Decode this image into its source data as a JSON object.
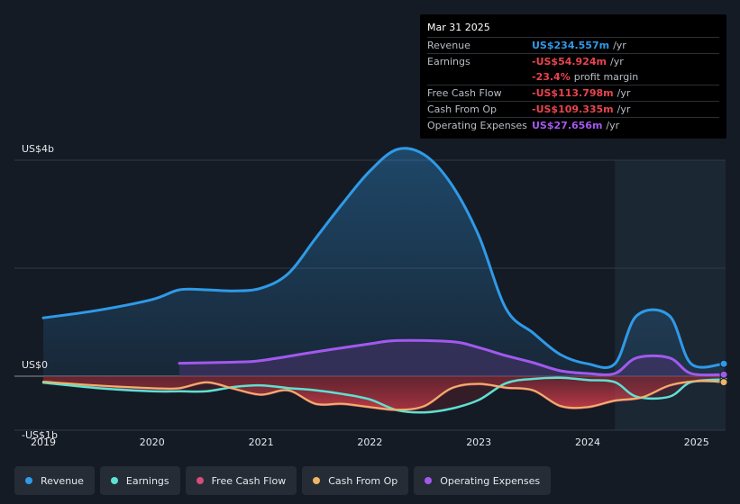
{
  "tooltip": {
    "date": "Mar 31 2025",
    "rows": [
      {
        "label": "Revenue",
        "value": "US$234.557m",
        "unit": "/yr",
        "color": "#2f9ae8"
      },
      {
        "label": "Earnings",
        "value": "-US$54.924m",
        "unit": "/yr",
        "color": "#e8444f"
      },
      {
        "label": "",
        "value": "-23.4%",
        "unit": "profit margin",
        "color": "#e8444f"
      },
      {
        "label": "Free Cash Flow",
        "value": "-US$113.798m",
        "unit": "/yr",
        "color": "#e8444f"
      },
      {
        "label": "Cash From Op",
        "value": "-US$109.335m",
        "unit": "/yr",
        "color": "#e8444f"
      },
      {
        "label": "Operating Expenses",
        "value": "US$27.656m",
        "unit": "/yr",
        "color": "#a259ee"
      }
    ]
  },
  "legend": [
    {
      "name": "Revenue",
      "color": "#2f9ae8"
    },
    {
      "name": "Earnings",
      "color": "#5ee0d2"
    },
    {
      "name": "Free Cash Flow",
      "color": "#d34f7a"
    },
    {
      "name": "Cash From Op",
      "color": "#eeb467"
    },
    {
      "name": "Operating Expenses",
      "color": "#a259ee"
    }
  ],
  "chart_data": {
    "type": "area",
    "title": "",
    "xlabel": "",
    "ylabel": "",
    "ylim": [
      -1,
      4
    ],
    "xlim": [
      2019.0,
      2025.25
    ],
    "y_tick_labels": [
      "US$4b",
      "US$0",
      "-US$1b"
    ],
    "x_tick_labels": [
      "2019",
      "2020",
      "2021",
      "2022",
      "2023",
      "2024",
      "2025"
    ],
    "forecast_start": 2024.25,
    "series": [
      {
        "name": "Revenue",
        "color": "#2f9ae8",
        "points": [
          [
            2019.0,
            1.08
          ],
          [
            2019.5,
            1.22
          ],
          [
            2020.0,
            1.42
          ],
          [
            2020.25,
            1.6
          ],
          [
            2020.5,
            1.6
          ],
          [
            2020.75,
            1.58
          ],
          [
            2021.0,
            1.63
          ],
          [
            2021.25,
            1.9
          ],
          [
            2021.5,
            2.55
          ],
          [
            2021.75,
            3.2
          ],
          [
            2022.0,
            3.8
          ],
          [
            2022.25,
            4.2
          ],
          [
            2022.5,
            4.1
          ],
          [
            2022.75,
            3.55
          ],
          [
            2023.0,
            2.6
          ],
          [
            2023.25,
            1.25
          ],
          [
            2023.5,
            0.8
          ],
          [
            2023.75,
            0.4
          ],
          [
            2024.0,
            0.23
          ],
          [
            2024.25,
            0.23
          ],
          [
            2024.45,
            1.12
          ],
          [
            2024.75,
            1.12
          ],
          [
            2024.95,
            0.23
          ],
          [
            2025.25,
            0.23
          ]
        ]
      },
      {
        "name": "Operating Expenses",
        "color": "#a259ee",
        "points": [
          [
            2020.25,
            0.24
          ],
          [
            2020.75,
            0.26
          ],
          [
            2021.0,
            0.29
          ],
          [
            2021.5,
            0.45
          ],
          [
            2022.0,
            0.6
          ],
          [
            2022.25,
            0.66
          ],
          [
            2022.75,
            0.64
          ],
          [
            2023.0,
            0.53
          ],
          [
            2023.25,
            0.38
          ],
          [
            2023.5,
            0.25
          ],
          [
            2023.75,
            0.1
          ],
          [
            2024.0,
            0.05
          ],
          [
            2024.25,
            0.05
          ],
          [
            2024.45,
            0.34
          ],
          [
            2024.75,
            0.34
          ],
          [
            2024.95,
            0.05
          ],
          [
            2025.25,
            0.03
          ]
        ]
      },
      {
        "name": "Earnings",
        "color": "#5ee0d2",
        "points": [
          [
            2019.0,
            -0.12
          ],
          [
            2019.5,
            -0.22
          ],
          [
            2020.0,
            -0.28
          ],
          [
            2020.25,
            -0.28
          ],
          [
            2020.5,
            -0.28
          ],
          [
            2020.75,
            -0.2
          ],
          [
            2021.0,
            -0.17
          ],
          [
            2021.25,
            -0.22
          ],
          [
            2021.5,
            -0.26
          ],
          [
            2021.75,
            -0.33
          ],
          [
            2022.0,
            -0.43
          ],
          [
            2022.25,
            -0.63
          ],
          [
            2022.5,
            -0.67
          ],
          [
            2022.75,
            -0.6
          ],
          [
            2023.0,
            -0.44
          ],
          [
            2023.25,
            -0.13
          ],
          [
            2023.5,
            -0.05
          ],
          [
            2023.75,
            -0.03
          ],
          [
            2024.0,
            -0.07
          ],
          [
            2024.25,
            -0.11
          ],
          [
            2024.45,
            -0.38
          ],
          [
            2024.75,
            -0.38
          ],
          [
            2024.95,
            -0.11
          ],
          [
            2025.25,
            -0.06
          ]
        ]
      },
      {
        "name": "Free Cash Flow",
        "color": "#d34f7a",
        "points": [
          [
            2019.0,
            -0.11
          ],
          [
            2019.5,
            -0.18
          ],
          [
            2020.0,
            -0.23
          ],
          [
            2020.25,
            -0.23
          ],
          [
            2020.5,
            -0.12
          ],
          [
            2020.75,
            -0.24
          ],
          [
            2021.0,
            -0.35
          ],
          [
            2021.25,
            -0.27
          ],
          [
            2021.5,
            -0.52
          ],
          [
            2021.75,
            -0.52
          ],
          [
            2022.0,
            -0.58
          ],
          [
            2022.25,
            -0.63
          ],
          [
            2022.5,
            -0.56
          ],
          [
            2022.75,
            -0.23
          ],
          [
            2023.0,
            -0.15
          ],
          [
            2023.25,
            -0.22
          ],
          [
            2023.5,
            -0.27
          ],
          [
            2023.75,
            -0.56
          ],
          [
            2024.0,
            -0.58
          ],
          [
            2024.25,
            -0.46
          ],
          [
            2024.5,
            -0.4
          ],
          [
            2024.75,
            -0.18
          ],
          [
            2025.0,
            -0.1
          ],
          [
            2025.25,
            -0.11
          ]
        ]
      },
      {
        "name": "Cash From Op",
        "color": "#eeb467",
        "points": [
          [
            2019.0,
            -0.1
          ],
          [
            2019.5,
            -0.17
          ],
          [
            2020.0,
            -0.22
          ],
          [
            2020.25,
            -0.22
          ],
          [
            2020.5,
            -0.11
          ],
          [
            2020.75,
            -0.23
          ],
          [
            2021.0,
            -0.34
          ],
          [
            2021.25,
            -0.26
          ],
          [
            2021.5,
            -0.51
          ],
          [
            2021.75,
            -0.51
          ],
          [
            2022.0,
            -0.57
          ],
          [
            2022.25,
            -0.62
          ],
          [
            2022.5,
            -0.55
          ],
          [
            2022.75,
            -0.22
          ],
          [
            2023.0,
            -0.14
          ],
          [
            2023.25,
            -0.21
          ],
          [
            2023.5,
            -0.26
          ],
          [
            2023.75,
            -0.55
          ],
          [
            2024.0,
            -0.57
          ],
          [
            2024.25,
            -0.45
          ],
          [
            2024.5,
            -0.39
          ],
          [
            2024.75,
            -0.17
          ],
          [
            2025.0,
            -0.09
          ],
          [
            2025.25,
            -0.11
          ]
        ]
      }
    ]
  }
}
